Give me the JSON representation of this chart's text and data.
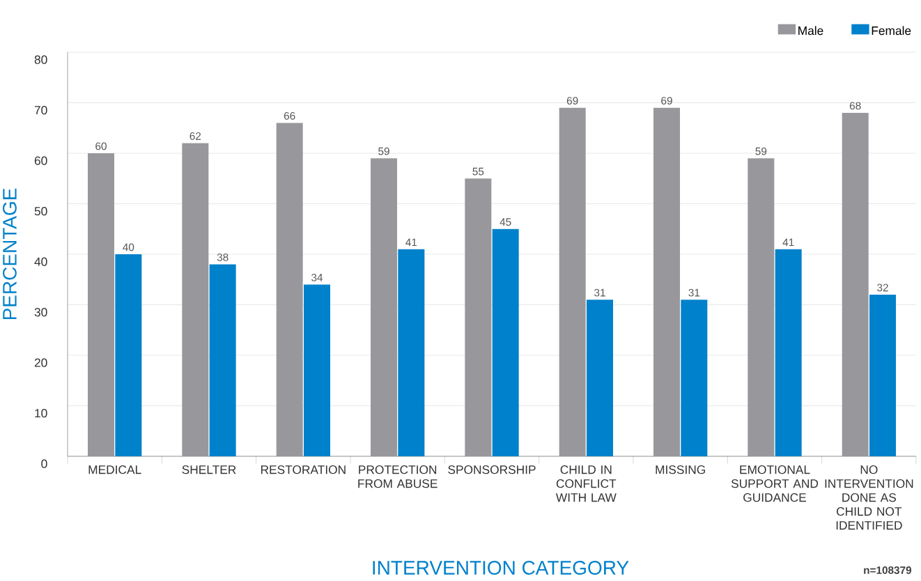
{
  "chart_data": {
    "type": "bar",
    "xlabel": "INTERVENTION CATEGORY",
    "ylabel": "PERCENTAGE",
    "categories": [
      "MEDICAL",
      "SHELTER",
      "RESTORATION",
      "PROTECTION FROM ABUSE",
      "SPONSORSHIP",
      "CHILD IN CONFLICT WITH LAW",
      "MISSING",
      "EMOTIONAL SUPPORT AND GUIDANCE",
      "NO INTERVENTION DONE AS CHILD NOT IDENTIFIED"
    ],
    "series": [
      {
        "name": "Male",
        "color": "#98979c",
        "values": [
          60,
          62,
          66,
          59,
          55,
          69,
          69,
          59,
          68
        ]
      },
      {
        "name": "Female",
        "color": "#0081cb",
        "values": [
          40,
          38,
          34,
          41,
          45,
          31,
          31,
          41,
          32
        ]
      }
    ],
    "ylim": [
      0,
      80
    ],
    "yticks": [
      0,
      10,
      20,
      30,
      40,
      50,
      60,
      70,
      80
    ],
    "grid": "y",
    "legend": "top right",
    "data_labels": true,
    "annotations": [
      "n=108379"
    ]
  }
}
